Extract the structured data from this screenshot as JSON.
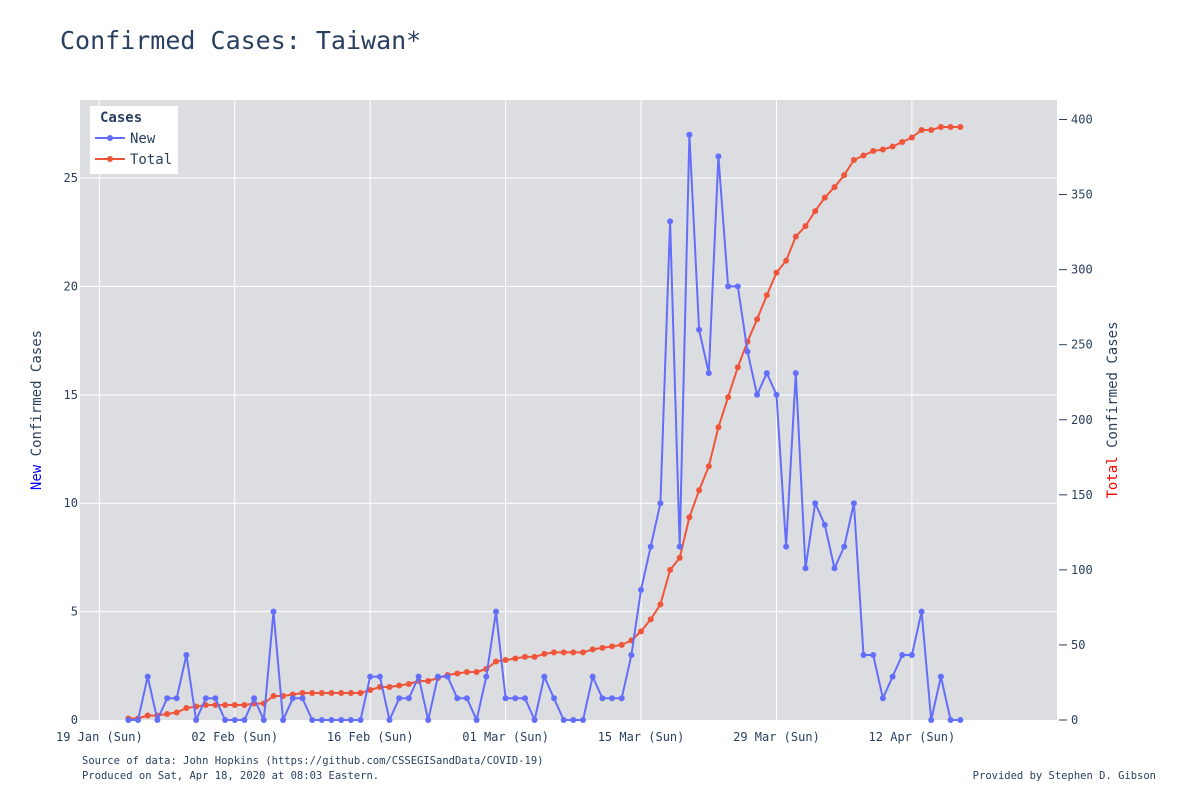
{
  "title": "Confirmed Cases: Taiwan*",
  "footer": {
    "source": "Source of data: John Hopkins (https://github.com/CSSEGISandData/COVID-19)",
    "produced": "Produced on Sat, Apr 18, 2020 at 08:03 Eastern.",
    "credit": "Provided by Stephen D. Gibson"
  },
  "colors": {
    "new": "#636efa",
    "total": "#ef553b",
    "plot_bg": "#dcdde0",
    "grid": "#ffffff",
    "text": "#2a3f5f",
    "ylabel_new_word": "#0000ff",
    "ylabel_total_word": "#ff0000"
  },
  "chart_data": {
    "type": "line",
    "start_date": "2020-01-22",
    "x_range": [
      "2020-01-17",
      "2020-04-27"
    ],
    "x_ticks": [
      {
        "date": "2020-01-19",
        "label": "19 Jan (Sun)"
      },
      {
        "date": "2020-02-02",
        "label": "02 Feb (Sun)"
      },
      {
        "date": "2020-02-16",
        "label": "16 Feb (Sun)"
      },
      {
        "date": "2020-03-01",
        "label": "01 Mar (Sun)"
      },
      {
        "date": "2020-03-15",
        "label": "15 Mar (Sun)"
      },
      {
        "date": "2020-03-29",
        "label": "29 Mar (Sun)"
      },
      {
        "date": "2020-04-12",
        "label": "12 Apr (Sun)"
      }
    ],
    "y_left": {
      "label_prefix": "New",
      "label_rest": " Confirmed Cases",
      "range": [
        0,
        28.6
      ],
      "ticks": [
        0,
        5,
        10,
        15,
        20,
        25
      ]
    },
    "y_right": {
      "label_prefix": "Total",
      "label_rest": " Confirmed Cases",
      "range": [
        0,
        413
      ],
      "ticks": [
        0,
        50,
        100,
        150,
        200,
        250,
        300,
        350,
        400
      ]
    },
    "legend": {
      "title": "Cases",
      "position": "top-left"
    },
    "series": [
      {
        "name": "New",
        "axis": "left",
        "values": [
          0,
          0,
          2,
          0,
          1,
          1,
          3,
          0,
          1,
          1,
          0,
          0,
          0,
          1,
          0,
          5,
          0,
          1,
          1,
          0,
          0,
          0,
          0,
          0,
          0,
          2,
          2,
          0,
          1,
          1,
          2,
          0,
          2,
          2,
          1,
          1,
          0,
          2,
          5,
          1,
          1,
          1,
          0,
          2,
          1,
          0,
          0,
          0,
          2,
          1,
          1,
          1,
          3,
          6,
          8,
          10,
          23,
          8,
          27,
          18,
          16,
          26,
          20,
          20,
          17,
          15,
          16,
          15,
          8,
          16,
          7,
          10,
          9,
          7,
          8,
          10,
          3,
          3,
          1,
          2,
          3,
          3,
          5,
          0,
          2,
          0,
          0
        ]
      },
      {
        "name": "Total",
        "axis": "right",
        "values": [
          1,
          1,
          3,
          3,
          4,
          5,
          8,
          9,
          10,
          10,
          10,
          10,
          10,
          11,
          11,
          16,
          16,
          17,
          18,
          18,
          18,
          18,
          18,
          18,
          18,
          20,
          22,
          22,
          23,
          24,
          26,
          26,
          28,
          30,
          31,
          32,
          32,
          34,
          39,
          40,
          41,
          42,
          42,
          44,
          45,
          45,
          45,
          45,
          47,
          48,
          49,
          50,
          53,
          59,
          67,
          77,
          100,
          108,
          135,
          153,
          169,
          195,
          215,
          235,
          252,
          267,
          283,
          298,
          306,
          322,
          329,
          339,
          348,
          355,
          363,
          373,
          376,
          379,
          380,
          382,
          385,
          388,
          393,
          393,
          395,
          395,
          395
        ]
      }
    ]
  }
}
